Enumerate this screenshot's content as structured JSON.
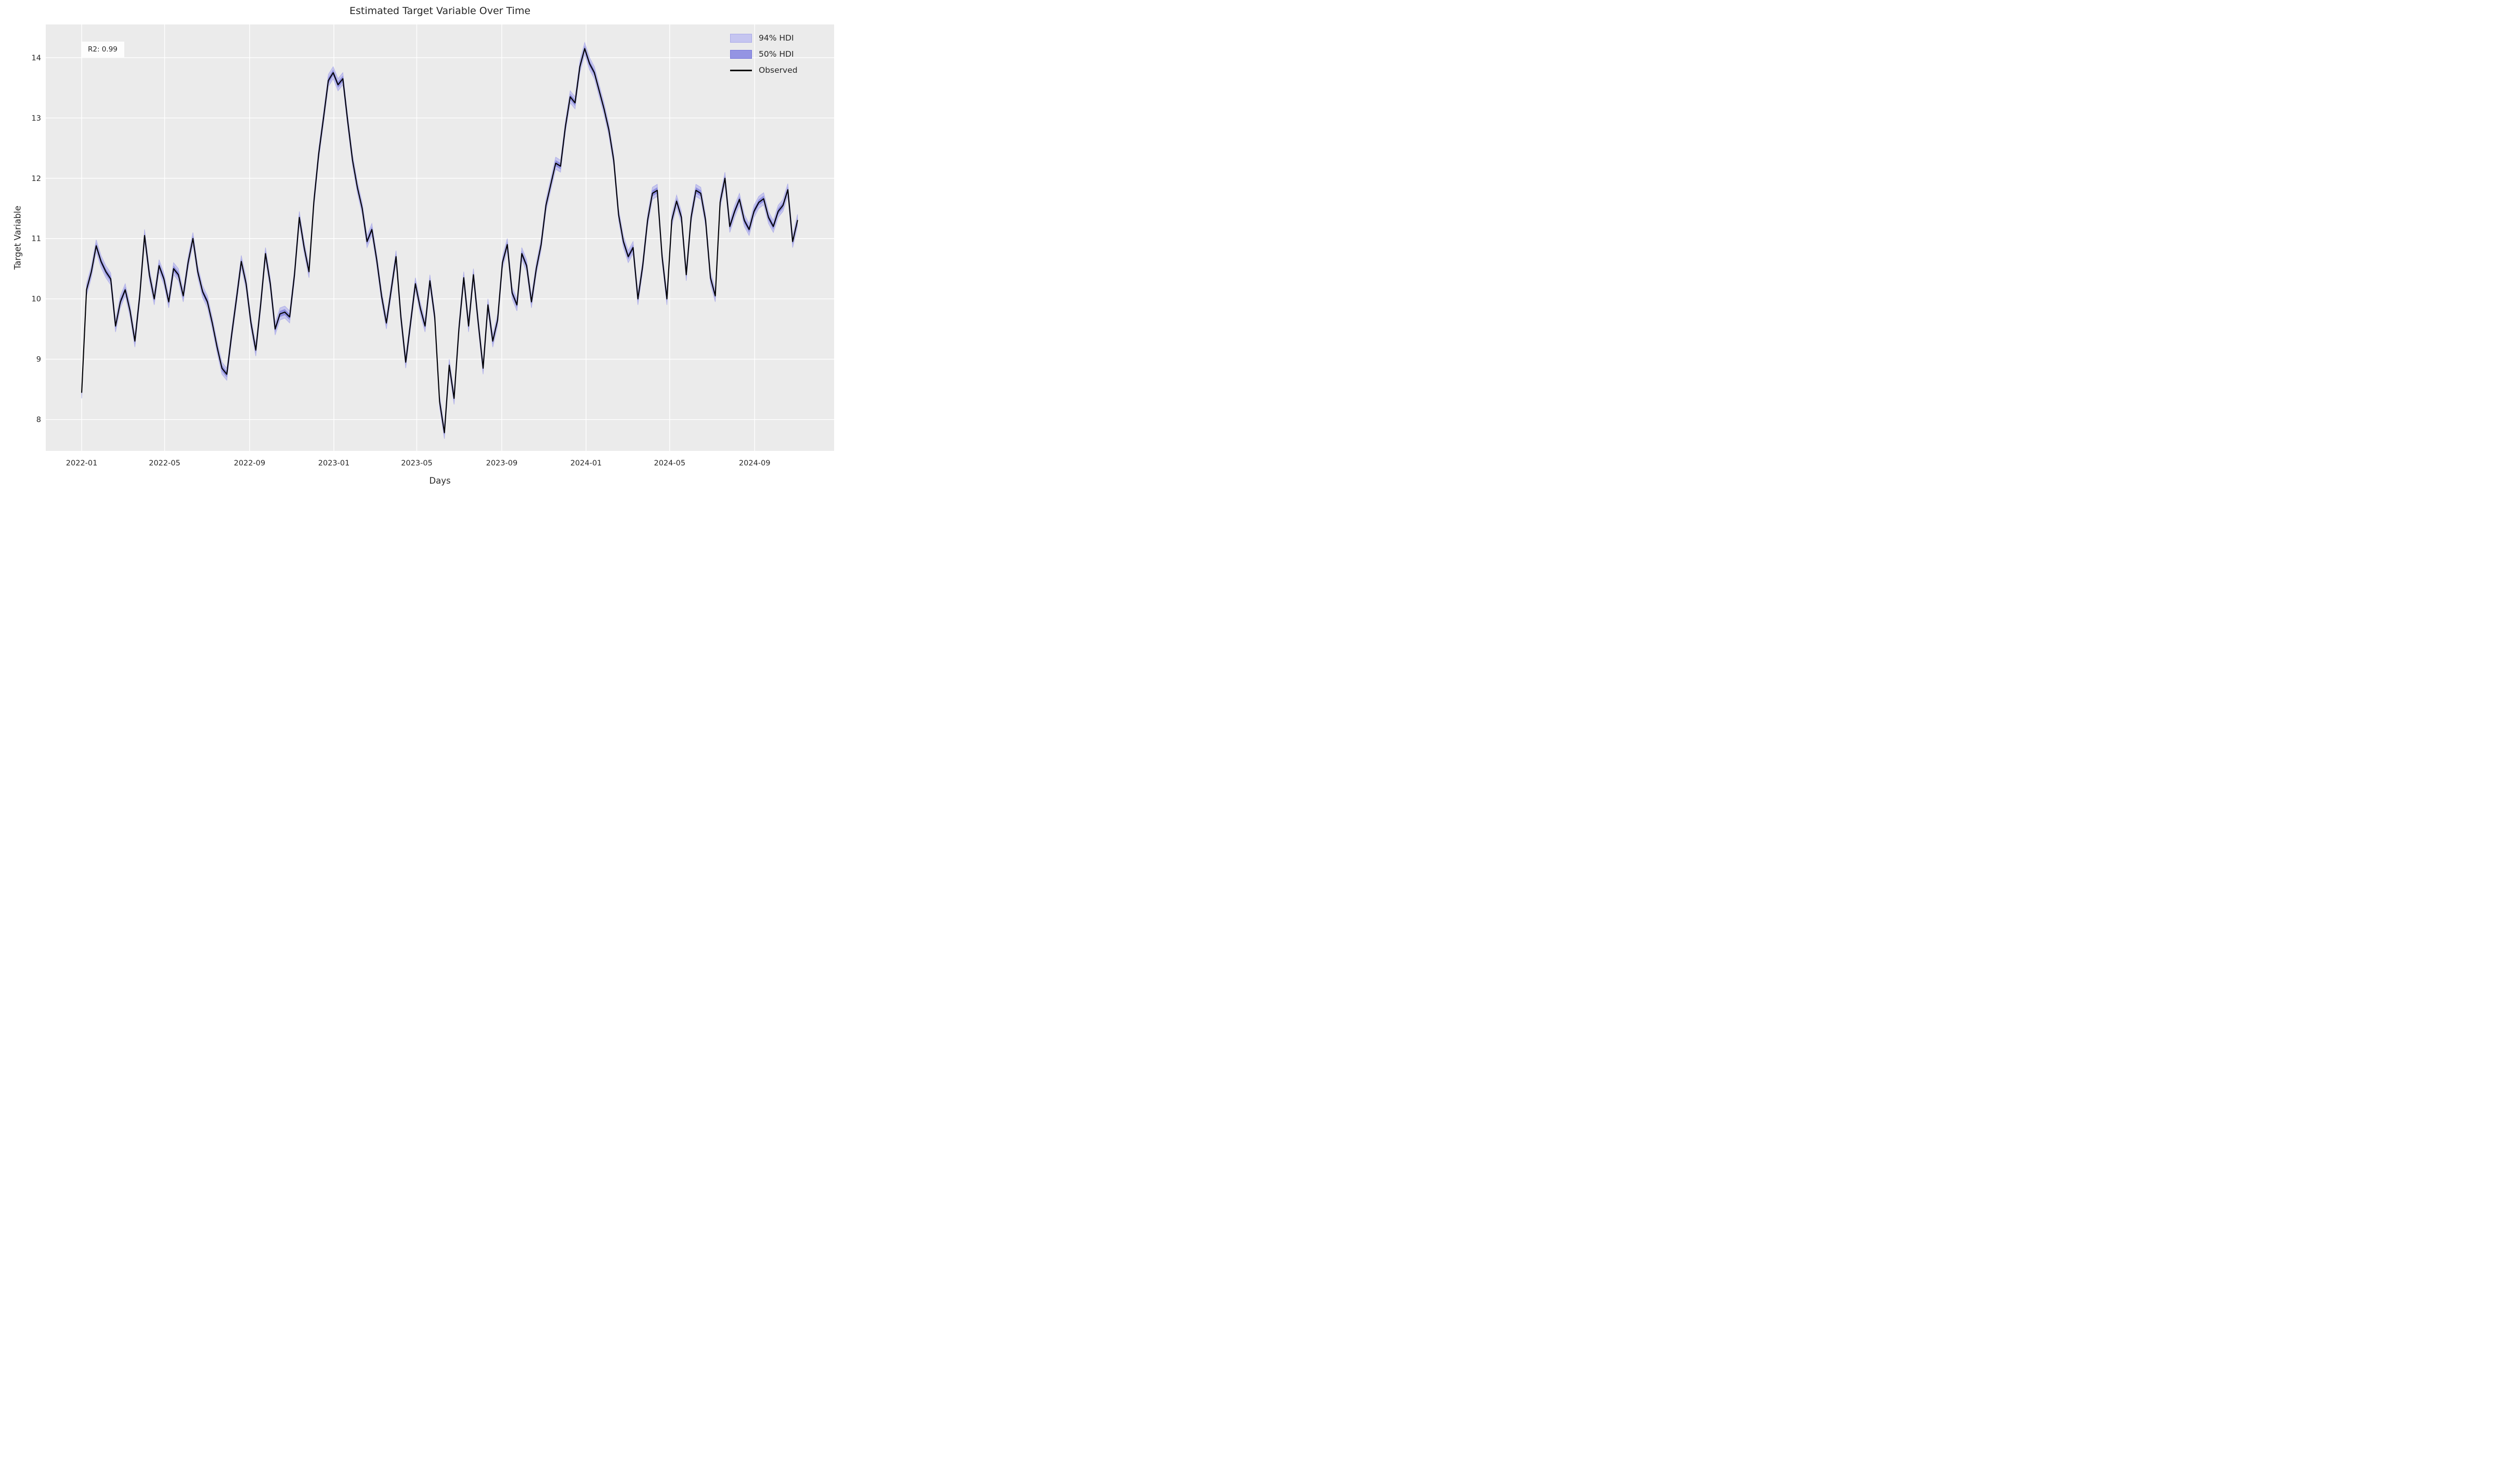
{
  "chart_data": {
    "type": "line",
    "title": "Estimated Target Variable Over Time",
    "xlabel": "Days",
    "ylabel": "Target Variable",
    "annotation": "R2: 0.99",
    "grid": true,
    "background_plot": "#ebebeb",
    "gridline_color": "#ffffff",
    "legend": {
      "position": "upper right",
      "items": [
        {
          "label": "94% HDI",
          "kind": "band",
          "fill": "#c5c5f0",
          "edge": "#a9a9e9"
        },
        {
          "label": "50% HDI",
          "kind": "band",
          "fill": "#9494e3",
          "edge": "#7878da"
        },
        {
          "label": "Observed",
          "kind": "line",
          "color": "#000000"
        }
      ]
    },
    "colors": {
      "observed_line": "#000000",
      "hdi94_fill": "#b7b7ec",
      "hdi50_fill": "#8484dd",
      "text": "#262626"
    },
    "x_epoch": "2022-01-01",
    "xlim_days": [
      -52,
      1089
    ],
    "ylim": [
      7.48,
      14.55
    ],
    "y_ticks": [
      8,
      9,
      10,
      11,
      12,
      13,
      14
    ],
    "x_ticks": [
      {
        "label": "2022-01",
        "day": 0
      },
      {
        "label": "2022-05",
        "day": 120
      },
      {
        "label": "2022-09",
        "day": 243
      },
      {
        "label": "2023-01",
        "day": 365
      },
      {
        "label": "2023-05",
        "day": 485
      },
      {
        "label": "2023-09",
        "day": 608
      },
      {
        "label": "2024-01",
        "day": 730
      },
      {
        "label": "2024-05",
        "day": 851
      },
      {
        "label": "2024-09",
        "day": 974
      }
    ],
    "hdi94_half_width": 0.1,
    "hdi50_half_width": 0.05,
    "series": [
      {
        "name": "Observed",
        "points": [
          [
            "2022-01-01",
            8.45
          ],
          [
            "2022-01-08",
            10.15
          ],
          [
            "2022-01-15",
            10.45
          ],
          [
            "2022-01-22",
            10.88
          ],
          [
            "2022-01-29",
            10.62
          ],
          [
            "2022-02-05",
            10.45
          ],
          [
            "2022-02-12",
            10.33
          ],
          [
            "2022-02-19",
            9.55
          ],
          [
            "2022-02-26",
            9.95
          ],
          [
            "2022-03-05",
            10.15
          ],
          [
            "2022-03-12",
            9.8
          ],
          [
            "2022-03-19",
            9.3
          ],
          [
            "2022-03-26",
            10.05
          ],
          [
            "2022-04-02",
            11.05
          ],
          [
            "2022-04-09",
            10.4
          ],
          [
            "2022-04-16",
            10.0
          ],
          [
            "2022-04-23",
            10.55
          ],
          [
            "2022-04-30",
            10.33
          ],
          [
            "2022-05-07",
            9.95
          ],
          [
            "2022-05-14",
            10.5
          ],
          [
            "2022-05-21",
            10.4
          ],
          [
            "2022-05-28",
            10.05
          ],
          [
            "2022-06-04",
            10.6
          ],
          [
            "2022-06-11",
            11.0
          ],
          [
            "2022-06-18",
            10.45
          ],
          [
            "2022-06-25",
            10.12
          ],
          [
            "2022-07-02",
            9.95
          ],
          [
            "2022-07-09",
            9.6
          ],
          [
            "2022-07-16",
            9.2
          ],
          [
            "2022-07-23",
            8.85
          ],
          [
            "2022-07-30",
            8.75
          ],
          [
            "2022-08-06",
            9.4
          ],
          [
            "2022-08-13",
            10.0
          ],
          [
            "2022-08-20",
            10.62
          ],
          [
            "2022-08-27",
            10.25
          ],
          [
            "2022-09-03",
            9.6
          ],
          [
            "2022-09-10",
            9.15
          ],
          [
            "2022-09-17",
            9.9
          ],
          [
            "2022-09-24",
            10.75
          ],
          [
            "2022-10-01",
            10.25
          ],
          [
            "2022-10-08",
            9.5
          ],
          [
            "2022-10-15",
            9.75
          ],
          [
            "2022-10-22",
            9.78
          ],
          [
            "2022-10-29",
            9.7
          ],
          [
            "2022-11-05",
            10.4
          ],
          [
            "2022-11-12",
            11.35
          ],
          [
            "2022-11-19",
            10.85
          ],
          [
            "2022-11-26",
            10.45
          ],
          [
            "2022-12-03",
            11.6
          ],
          [
            "2022-12-10",
            12.4
          ],
          [
            "2022-12-17",
            13.0
          ],
          [
            "2022-12-24",
            13.62
          ],
          [
            "2022-12-31",
            13.75
          ],
          [
            "2023-01-07",
            13.55
          ],
          [
            "2023-01-14",
            13.65
          ],
          [
            "2023-01-21",
            12.95
          ],
          [
            "2023-01-28",
            12.3
          ],
          [
            "2023-02-04",
            11.85
          ],
          [
            "2023-02-11",
            11.5
          ],
          [
            "2023-02-18",
            10.95
          ],
          [
            "2023-02-25",
            11.15
          ],
          [
            "2023-03-04",
            10.65
          ],
          [
            "2023-03-11",
            10.05
          ],
          [
            "2023-03-18",
            9.6
          ],
          [
            "2023-03-25",
            10.15
          ],
          [
            "2023-04-01",
            10.7
          ],
          [
            "2023-04-08",
            9.7
          ],
          [
            "2023-04-15",
            8.95
          ],
          [
            "2023-04-22",
            9.6
          ],
          [
            "2023-04-29",
            10.25
          ],
          [
            "2023-05-06",
            9.85
          ],
          [
            "2023-05-13",
            9.55
          ],
          [
            "2023-05-20",
            10.3
          ],
          [
            "2023-05-27",
            9.7
          ],
          [
            "2023-06-03",
            8.3
          ],
          [
            "2023-06-10",
            7.78
          ],
          [
            "2023-06-17",
            8.9
          ],
          [
            "2023-06-24",
            8.35
          ],
          [
            "2023-07-01",
            9.5
          ],
          [
            "2023-07-08",
            10.35
          ],
          [
            "2023-07-15",
            9.55
          ],
          [
            "2023-07-22",
            10.4
          ],
          [
            "2023-07-29",
            9.6
          ],
          [
            "2023-08-05",
            8.85
          ],
          [
            "2023-08-12",
            9.9
          ],
          [
            "2023-08-19",
            9.3
          ],
          [
            "2023-08-26",
            9.65
          ],
          [
            "2023-09-02",
            10.6
          ],
          [
            "2023-09-09",
            10.9
          ],
          [
            "2023-09-16",
            10.1
          ],
          [
            "2023-09-23",
            9.9
          ],
          [
            "2023-09-30",
            10.75
          ],
          [
            "2023-10-07",
            10.55
          ],
          [
            "2023-10-14",
            9.95
          ],
          [
            "2023-10-21",
            10.5
          ],
          [
            "2023-10-28",
            10.9
          ],
          [
            "2023-11-04",
            11.55
          ],
          [
            "2023-11-11",
            11.9
          ],
          [
            "2023-11-18",
            12.25
          ],
          [
            "2023-11-25",
            12.2
          ],
          [
            "2023-12-02",
            12.85
          ],
          [
            "2023-12-09",
            13.35
          ],
          [
            "2023-12-16",
            13.25
          ],
          [
            "2023-12-23",
            13.85
          ],
          [
            "2023-12-30",
            14.15
          ],
          [
            "2024-01-06",
            13.9
          ],
          [
            "2024-01-13",
            13.75
          ],
          [
            "2024-01-20",
            13.45
          ],
          [
            "2024-01-27",
            13.15
          ],
          [
            "2024-02-03",
            12.8
          ],
          [
            "2024-02-10",
            12.3
          ],
          [
            "2024-02-17",
            11.4
          ],
          [
            "2024-02-24",
            10.95
          ],
          [
            "2024-03-02",
            10.7
          ],
          [
            "2024-03-09",
            10.85
          ],
          [
            "2024-03-16",
            10.0
          ],
          [
            "2024-03-23",
            10.55
          ],
          [
            "2024-03-30",
            11.3
          ],
          [
            "2024-04-06",
            11.75
          ],
          [
            "2024-04-13",
            11.8
          ],
          [
            "2024-04-20",
            10.7
          ],
          [
            "2024-04-27",
            10.0
          ],
          [
            "2024-05-04",
            11.3
          ],
          [
            "2024-05-11",
            11.62
          ],
          [
            "2024-05-18",
            11.35
          ],
          [
            "2024-05-25",
            10.4
          ],
          [
            "2024-06-01",
            11.35
          ],
          [
            "2024-06-08",
            11.8
          ],
          [
            "2024-06-15",
            11.75
          ],
          [
            "2024-06-22",
            11.3
          ],
          [
            "2024-06-29",
            10.35
          ],
          [
            "2024-07-06",
            10.05
          ],
          [
            "2024-07-13",
            11.6
          ],
          [
            "2024-07-20",
            12.0
          ],
          [
            "2024-07-27",
            11.2
          ],
          [
            "2024-08-03",
            11.45
          ],
          [
            "2024-08-10",
            11.65
          ],
          [
            "2024-08-17",
            11.3
          ],
          [
            "2024-08-24",
            11.15
          ],
          [
            "2024-08-31",
            11.45
          ],
          [
            "2024-09-07",
            11.6
          ],
          [
            "2024-09-14",
            11.66
          ],
          [
            "2024-09-21",
            11.35
          ],
          [
            "2024-09-28",
            11.2
          ],
          [
            "2024-10-05",
            11.45
          ],
          [
            "2024-10-12",
            11.55
          ],
          [
            "2024-10-19",
            11.81
          ],
          [
            "2024-10-26",
            10.95
          ],
          [
            "2024-11-02",
            11.3
          ]
        ]
      }
    ]
  }
}
